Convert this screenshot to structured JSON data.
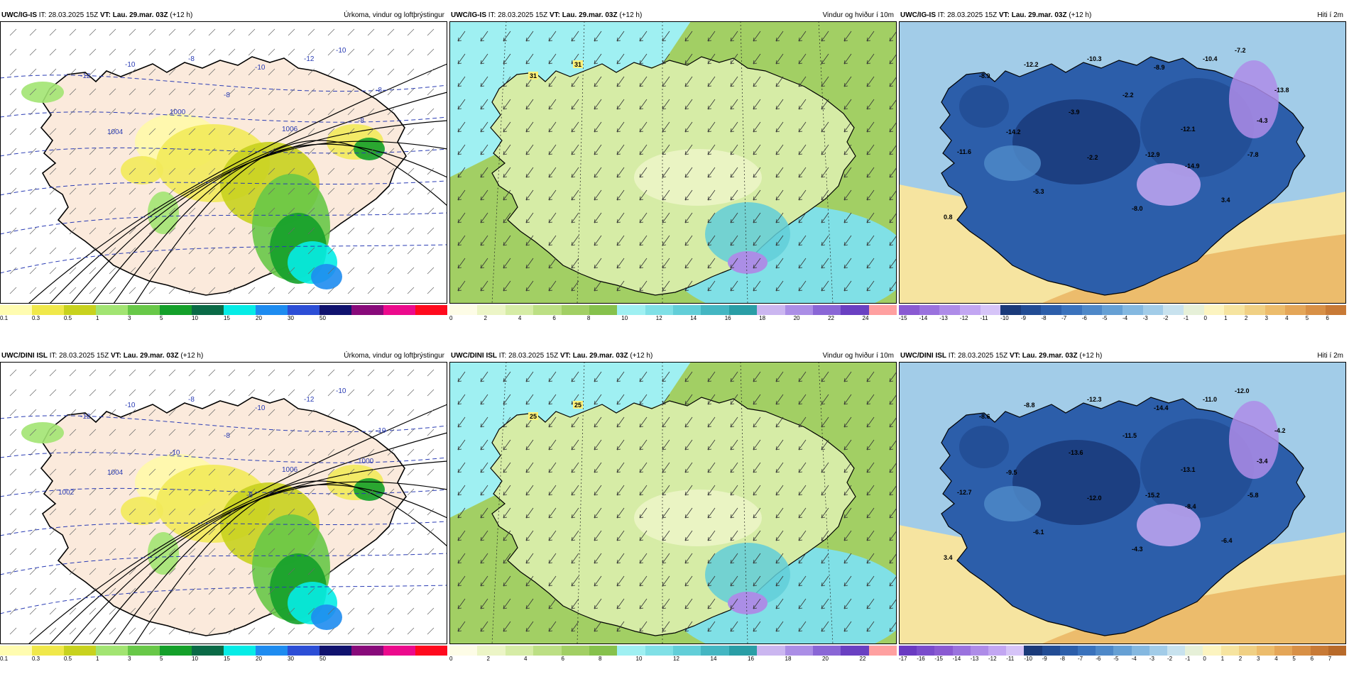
{
  "init_time_label": "IT: 28.03.2025 15Z",
  "valid_time_label": "VT: Lau. 29.mar. 03Z",
  "lead_label": "(+12 h)",
  "rows": [
    {
      "model": "UWC/IG-IS",
      "panels": [
        {
          "title": "Úrkoma, vindur og loftþrýstingur",
          "colorbar": {
            "colors": [
              "#fffcb0",
              "#f0e84a",
              "#c8d21e",
              "#a2e472",
              "#68c848",
              "#14a02a",
              "#0a6a46",
              "#06ece6",
              "#1e8cf0",
              "#2c4ed6",
              "#10126e",
              "#880a7a",
              "#ec0a8c",
              "#ff0a1e"
            ],
            "ticks": [
              "0.1",
              "0.3",
              "0.5",
              "1",
              "3",
              "5",
              "10",
              "15",
              "20",
              "30",
              "50"
            ]
          },
          "labels": [
            "-12",
            "-10",
            "-8",
            "-10",
            "-12",
            "-10",
            "-8",
            "-8",
            "1000",
            "1004",
            "1006",
            "-8"
          ]
        },
        {
          "title": "Vindur og hviður í 10m",
          "colorbar": {
            "colors": [
              "#fdfce6",
              "#ecf5c6",
              "#d6eca6",
              "#bcdf84",
              "#a2cf64",
              "#86c14c",
              "#9ff0f2",
              "#80e0e6",
              "#62ced8",
              "#44b6c2",
              "#2a9ea6",
              "#cbb6f0",
              "#ab8ee6",
              "#8a66d6",
              "#6a40c2",
              "#ffa0a0"
            ],
            "ticks": [
              "0",
              "2",
              "4",
              "6",
              "8",
              "10",
              "12",
              "14",
              "16",
              "18",
              "20",
              "22",
              "24"
            ]
          },
          "labels": [
            "31",
            "31"
          ]
        },
        {
          "title": "Hiti í 2m",
          "colorbar": {
            "colors": [
              "#8a5ad2",
              "#9a72de",
              "#ae8ce8",
              "#c2a6f2",
              "#d6c4f8",
              "#1a3a7a",
              "#224c94",
              "#2c5eaa",
              "#3a72bc",
              "#4e88c8",
              "#66a0d4",
              "#84b8e0",
              "#a2cce8",
              "#c8e2ee",
              "#e6f0d8",
              "#fcf4c0",
              "#f6e4a0",
              "#f0d084",
              "#ecbc6c",
              "#e4a658",
              "#d89046",
              "#c87a36"
            ],
            "ticks": [
              "-15",
              "-14",
              "-13",
              "-12",
              "-11",
              "-10",
              "-9",
              "-8",
              "-7",
              "-6",
              "-5",
              "-4",
              "-3",
              "-2",
              "-1",
              "0",
              "1",
              "2",
              "3",
              "4",
              "5",
              "6"
            ]
          },
          "labels": [
            "-8.9",
            "-12.2",
            "-10.3",
            "-8.9",
            "-10.4",
            "-7.2",
            "-13.8",
            "-2.2",
            "-3.9",
            "-14.2",
            "-12.1",
            "-4.3",
            "-11.6",
            "-12.9",
            "-2.2",
            "-14.9",
            "-7.8",
            "-5.3",
            "-8.0",
            "3.4",
            "0.8"
          ]
        }
      ]
    },
    {
      "model": "UWC/DINI ISL",
      "panels": [
        {
          "title": "Úrkoma, vindur og loftþrýstingur",
          "colorbar": {
            "colors": [
              "#fffcb0",
              "#f0e84a",
              "#c8d21e",
              "#a2e472",
              "#68c848",
              "#14a02a",
              "#0a6a46",
              "#06ece6",
              "#1e8cf0",
              "#2c4ed6",
              "#10126e",
              "#880a7a",
              "#ec0a8c",
              "#ff0a1e"
            ],
            "ticks": [
              "0.1",
              "0.3",
              "0.5",
              "1",
              "3",
              "5",
              "10",
              "15",
              "20",
              "30",
              "50"
            ]
          },
          "labels": [
            "-12",
            "-10",
            "-8",
            "-10",
            "-12",
            "-10",
            "-10",
            "-8",
            "-10",
            "1004",
            "1006",
            "1000",
            "1002",
            "-8"
          ]
        },
        {
          "title": "Vindur og hviður í 10m",
          "colorbar": {
            "colors": [
              "#fdfce6",
              "#ecf5c6",
              "#d6eca6",
              "#bcdf84",
              "#a2cf64",
              "#86c14c",
              "#9ff0f2",
              "#80e0e6",
              "#62ced8",
              "#44b6c2",
              "#2a9ea6",
              "#cbb6f0",
              "#ab8ee6",
              "#8a66d6",
              "#6a40c2",
              "#ffa0a0"
            ],
            "ticks": [
              "0",
              "2",
              "4",
              "6",
              "8",
              "10",
              "12",
              "14",
              "16",
              "18",
              "20",
              "22"
            ]
          },
          "labels": [
            "25",
            "25"
          ]
        },
        {
          "title": "Hiti í 2m",
          "colorbar": {
            "colors": [
              "#6a3ac2",
              "#7a4ccc",
              "#8a5ad2",
              "#9a72de",
              "#ae8ce8",
              "#c2a6f2",
              "#d6c4f8",
              "#1a3a7a",
              "#224c94",
              "#2c5eaa",
              "#3a72bc",
              "#4e88c8",
              "#66a0d4",
              "#84b8e0",
              "#a2cce8",
              "#c8e2ee",
              "#e6f0d8",
              "#fcf4c0",
              "#f6e4a0",
              "#f0d084",
              "#ecbc6c",
              "#e4a658",
              "#d89046",
              "#c87a36",
              "#b86a2a"
            ],
            "ticks": [
              "-17",
              "-16",
              "-15",
              "-14",
              "-13",
              "-12",
              "-11",
              "-10",
              "-9",
              "-8",
              "-7",
              "-6",
              "-5",
              "-4",
              "-3",
              "-2",
              "-1",
              "0",
              "1",
              "2",
              "3",
              "4",
              "5",
              "6",
              "7"
            ]
          },
          "labels": [
            "-8.6",
            "-8.8",
            "-12.3",
            "-14.4",
            "-11.0",
            "-12.0",
            "-4.2",
            "-11.5",
            "-13.6",
            "-9.5",
            "-13.1",
            "-3.4",
            "-12.7",
            "-15.2",
            "-12.0",
            "-8.4",
            "-5.8",
            "-6.1",
            "-4.3",
            "-6.4",
            "3.4"
          ]
        }
      ]
    }
  ]
}
